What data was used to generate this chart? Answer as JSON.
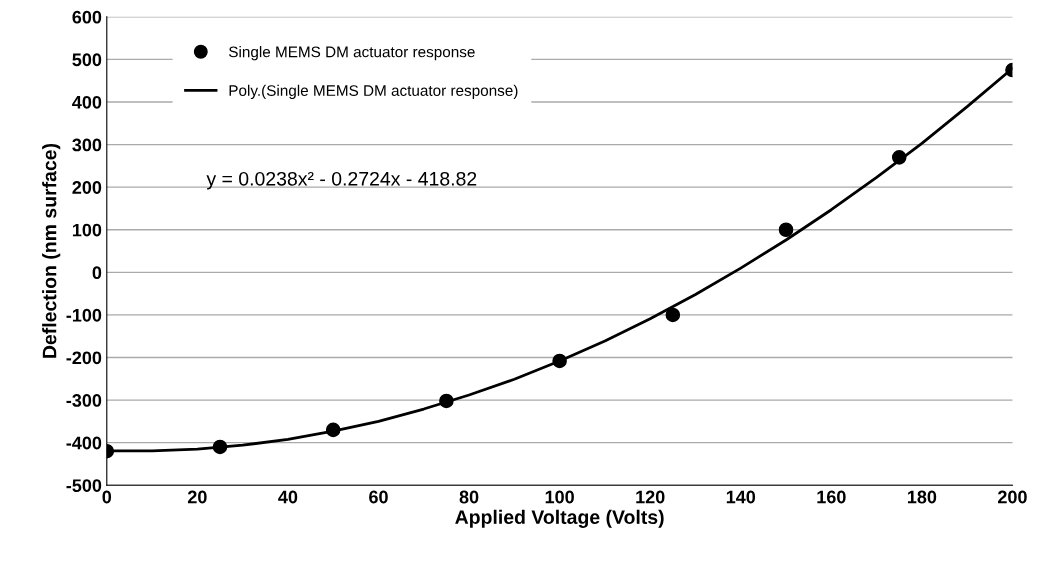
{
  "chart_data": {
    "type": "scatter",
    "xlabel": "Applied Voltage (Volts)",
    "ylabel": "Deflection (nm surface)",
    "xlim": [
      0,
      200
    ],
    "xticks": [
      0,
      20,
      40,
      60,
      80,
      100,
      120,
      140,
      160,
      180,
      200
    ],
    "ylim": [
      -500,
      600
    ],
    "yticks": [
      -500,
      -400,
      -300,
      -200,
      -100,
      0,
      100,
      200,
      300,
      400,
      500,
      600
    ],
    "grid": "y",
    "legend": "top left",
    "annotations": [
      "y = 0.0238x² - 0.2724x - 418.82"
    ],
    "series": [
      {
        "name": "Single MEMS DM actuator response",
        "color": "#000000",
        "marker": "circle",
        "x": [
          0,
          25,
          50,
          75,
          100,
          125,
          150,
          175,
          200
        ],
        "values": [
          -420,
          -410,
          -370,
          -302,
          -208,
          -100,
          100,
          270,
          475
        ]
      },
      {
        "name": "Poly.(Single MEMS DM actuator response)",
        "type": "line",
        "color": "#000000",
        "line_style": "solid",
        "x": [
          0,
          10,
          20,
          30,
          40,
          50,
          60,
          70,
          80,
          90,
          100,
          110,
          120,
          130,
          140,
          150,
          160,
          170,
          180,
          190,
          200
        ],
        "values": [
          -419,
          -419,
          -415,
          -406,
          -392,
          -373,
          -350,
          -321,
          -288,
          -251,
          -208,
          -161,
          -109,
          -52,
          10,
          76,
          147,
          223,
          303,
          389,
          479
        ]
      }
    ]
  }
}
